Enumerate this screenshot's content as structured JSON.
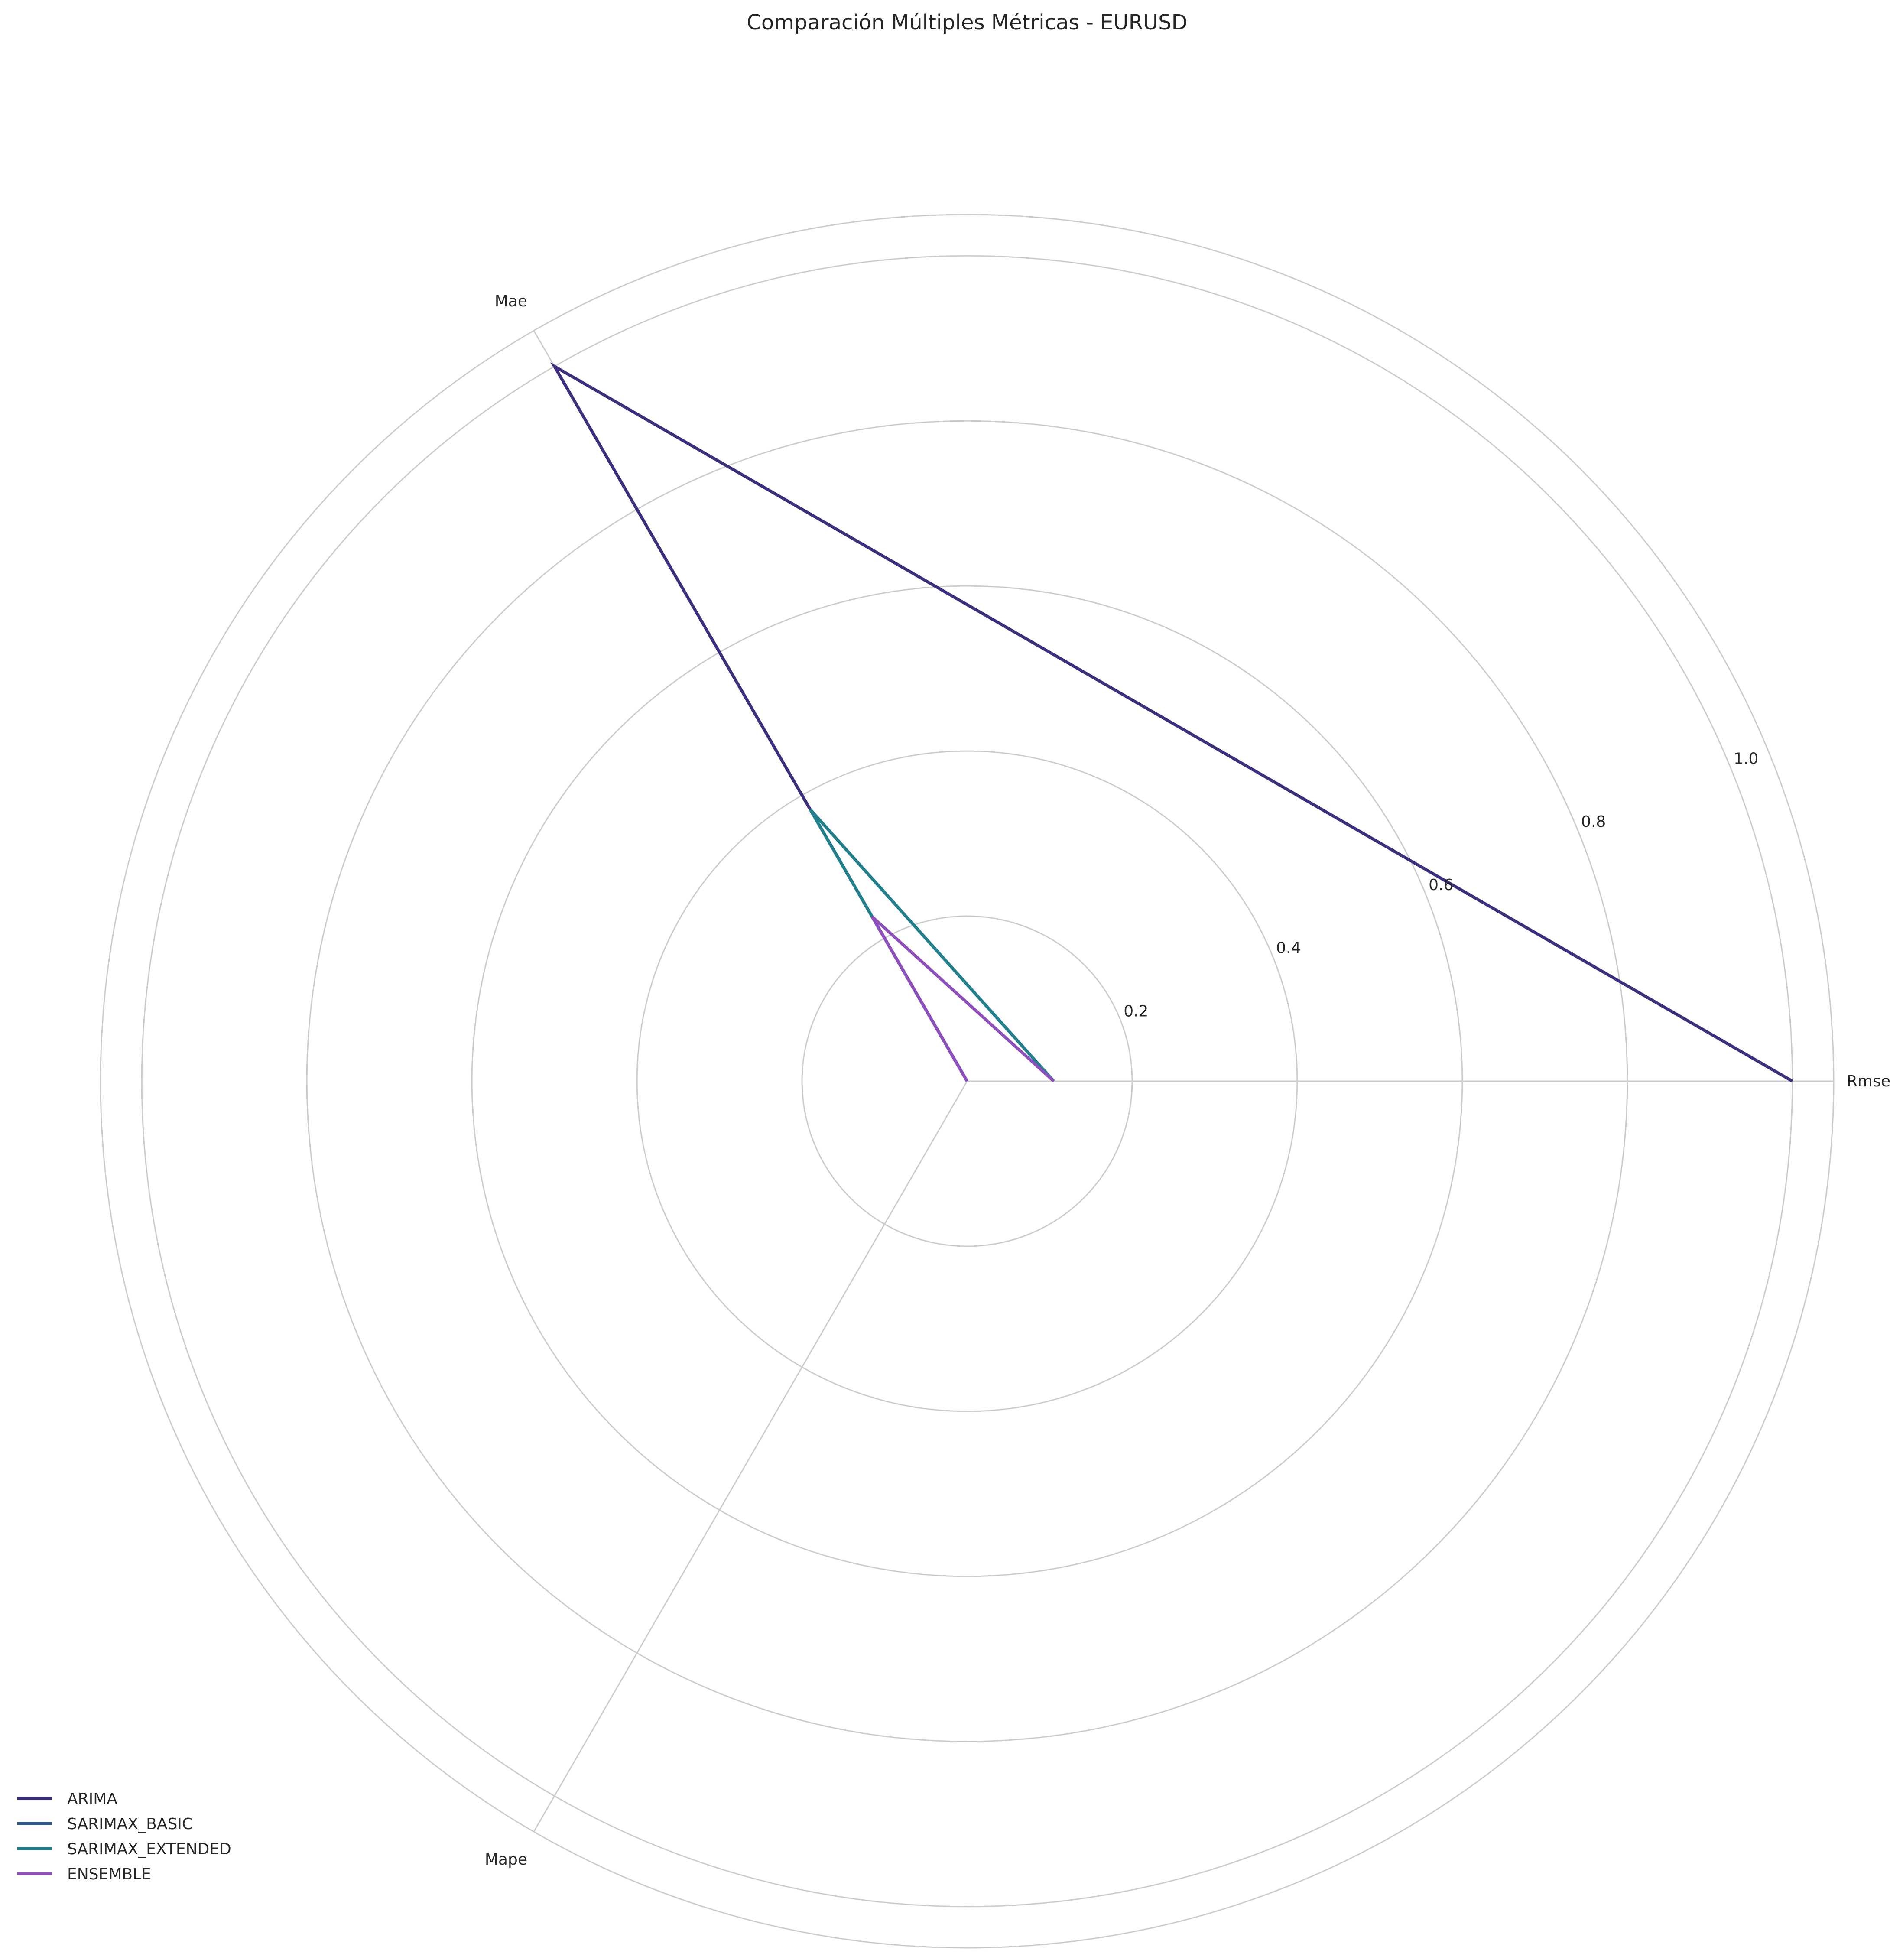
{
  "chart_data": {
    "type": "radar",
    "title": "Comparación Múltiples Métricas - EURUSD",
    "axes": [
      "Rmse",
      "Mae",
      "Mape"
    ],
    "rlim": [
      0,
      1.05
    ],
    "rticks": [
      "0.2",
      "0.4",
      "0.6",
      "0.8",
      "1.0"
    ],
    "rtick_values": [
      0.2,
      0.4,
      0.6,
      0.8,
      1.0
    ],
    "grid": true,
    "legend_position": "lower-left",
    "series": [
      {
        "name": "ARIMA",
        "color": "#3f2e7e",
        "values": [
          1.0,
          1.0,
          0.0
        ]
      },
      {
        "name": "SARIMAX_BASIC",
        "color": "#2e5b8a",
        "values": [
          0.105,
          0.38,
          0.0
        ]
      },
      {
        "name": "SARIMAX_EXTENDED",
        "color": "#21808c",
        "values": [
          0.105,
          0.38,
          0.0
        ]
      },
      {
        "name": "ENSEMBLE",
        "color": "#8e4fbd",
        "values": [
          0.105,
          0.23,
          0.0
        ]
      }
    ]
  }
}
